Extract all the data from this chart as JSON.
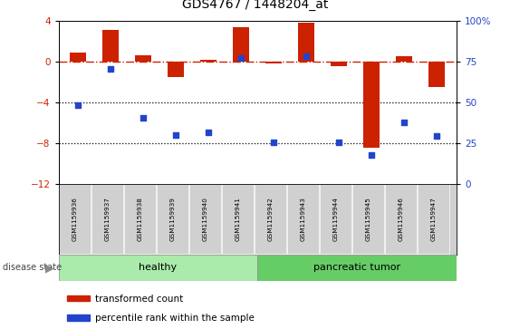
{
  "title": "GDS4767 / 1448204_at",
  "samples": [
    "GSM1159936",
    "GSM1159937",
    "GSM1159938",
    "GSM1159939",
    "GSM1159940",
    "GSM1159941",
    "GSM1159942",
    "GSM1159943",
    "GSM1159944",
    "GSM1159945",
    "GSM1159946",
    "GSM1159947"
  ],
  "transformed_count": [
    0.9,
    3.1,
    0.6,
    -1.5,
    0.2,
    3.4,
    -0.2,
    3.8,
    -0.5,
    -8.5,
    0.5,
    -2.5
  ],
  "percentile_rank_scaled": [
    -4.3,
    -0.7,
    -5.5,
    -7.2,
    -7.0,
    0.3,
    -7.9,
    0.5,
    -7.9,
    -9.2,
    -6.0,
    -7.3
  ],
  "ylim": [
    -12,
    4
  ],
  "yticks_left": [
    -12,
    -8,
    -4,
    0,
    4
  ],
  "yticks_right": [
    0,
    25,
    50,
    75,
    100
  ],
  "bar_color": "#cc2200",
  "dot_color": "#2244cc",
  "healthy_color": "#aaeaaa",
  "tumor_color": "#66cc66",
  "label_box_color": "#d0d0d0",
  "bar_width": 0.5,
  "title_fontsize": 10,
  "legend_bar_label": "transformed count",
  "legend_dot_label": "percentile rank within the sample"
}
